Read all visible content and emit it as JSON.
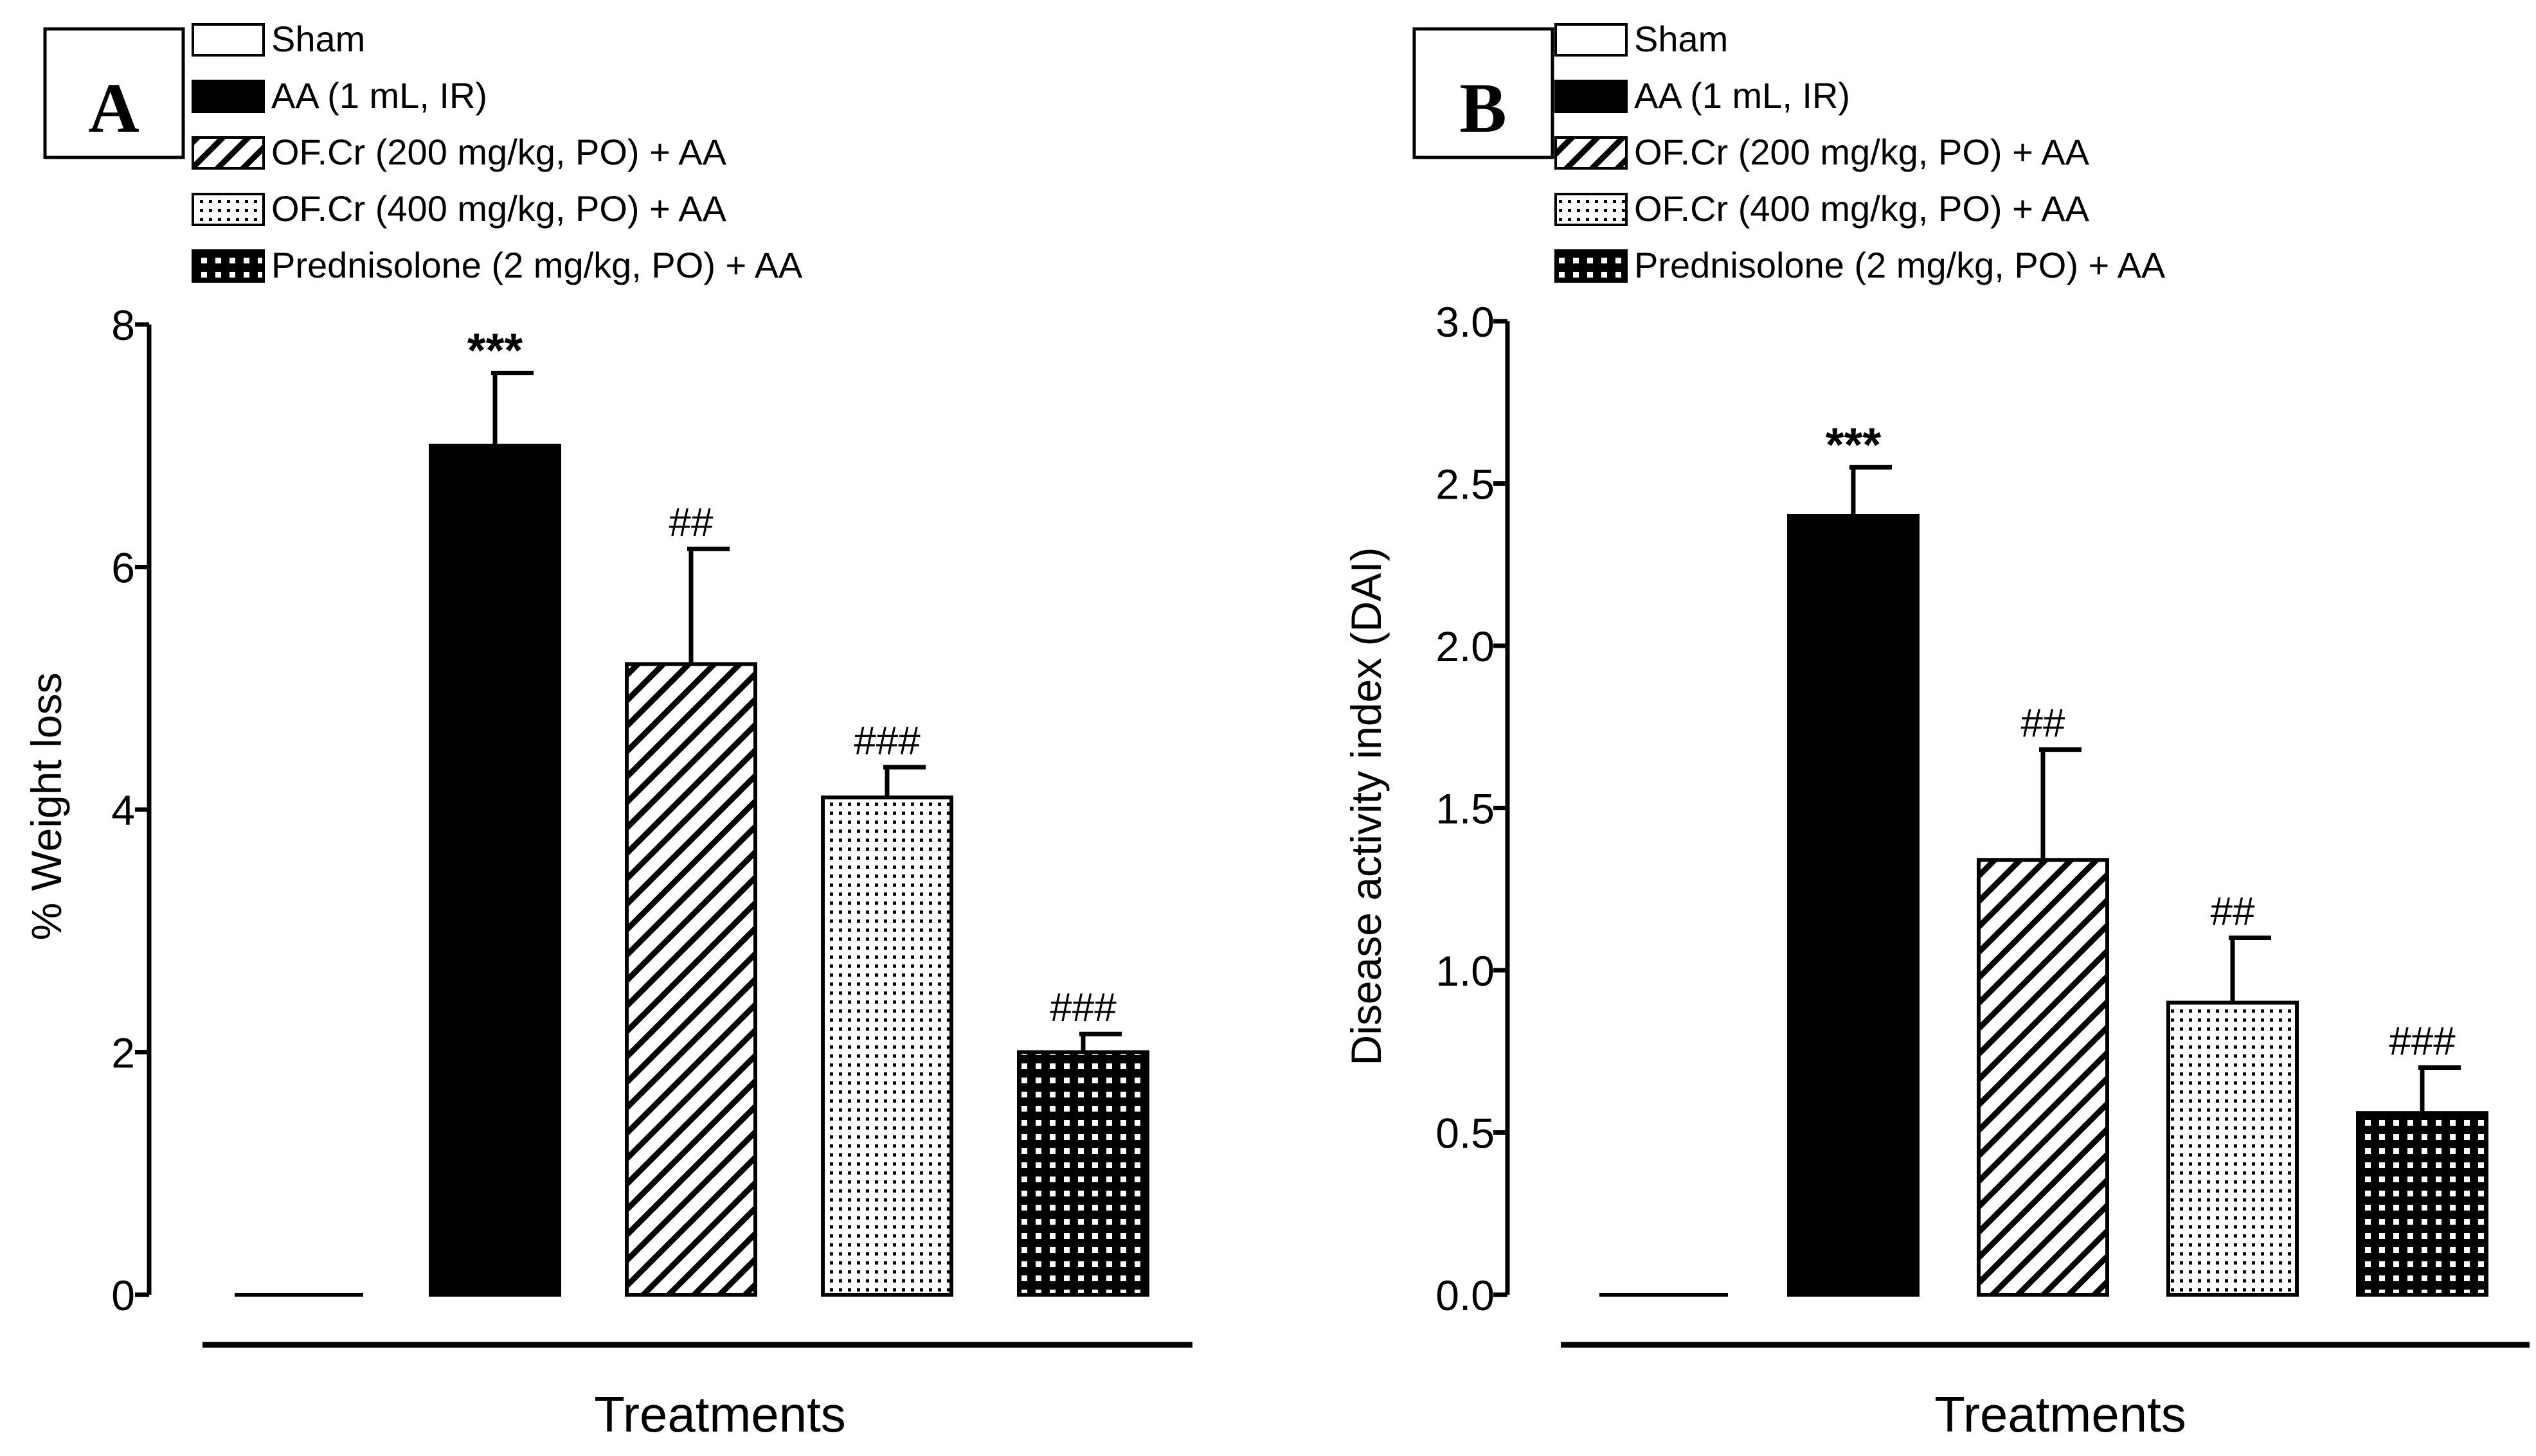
{
  "legend": [
    {
      "label": "Sham",
      "pattern": "white"
    },
    {
      "label": "AA (1 mL, IR)",
      "pattern": "black"
    },
    {
      "label": "OF.Cr (200 mg/kg, PO) + AA",
      "pattern": "hatch"
    },
    {
      "label": "OF.Cr (400 mg/kg, PO) + AA",
      "pattern": "dots-fine"
    },
    {
      "label": "Prednisolone (2 mg/kg, PO) + AA",
      "pattern": "dots-coarse"
    }
  ],
  "colors": {
    "ink": "#000000",
    "background": "#ffffff"
  },
  "chart_data": [
    {
      "type": "bar",
      "panel": "A",
      "ylabel": "% Weight loss",
      "xlabel": "Treatments",
      "ylim": [
        0,
        8
      ],
      "yticks": [
        "0",
        "2",
        "4",
        "6",
        "8"
      ],
      "ytick_values": [
        0,
        2,
        4,
        6,
        8
      ],
      "categories": [
        "Sham",
        "AA (1 mL, IR)",
        "OF.Cr (200 mg/kg, PO) + AA",
        "OF.Cr (400 mg/kg, PO) + AA",
        "Prednisolone (2 mg/kg, PO) + AA"
      ],
      "values": [
        0,
        7.0,
        5.2,
        4.1,
        2.0
      ],
      "errors": [
        0,
        0.6,
        0.95,
        0.25,
        0.15
      ],
      "annotations": [
        "",
        "***",
        "##",
        "###",
        "###"
      ]
    },
    {
      "type": "bar",
      "panel": "B",
      "ylabel": "Disease activity index (DAI)",
      "xlabel": "Treatments",
      "ylim": [
        0,
        3
      ],
      "yticks": [
        "0.0",
        "0.5",
        "1.0",
        "1.5",
        "2.0",
        "2.5",
        "3.0"
      ],
      "ytick_values": [
        0,
        0.5,
        1.0,
        1.5,
        2.0,
        2.5,
        3.0
      ],
      "categories": [
        "Sham",
        "AA (1 mL, IR)",
        "OF.Cr (200 mg/kg, PO) + AA",
        "OF.Cr (400 mg/kg, PO) + AA",
        "Prednisolone (2 mg/kg, PO) + AA"
      ],
      "values": [
        0,
        2.4,
        1.34,
        0.9,
        0.56
      ],
      "errors": [
        0,
        0.15,
        0.34,
        0.2,
        0.14
      ],
      "annotations": [
        "",
        "***",
        "##",
        "##",
        "###"
      ]
    }
  ]
}
